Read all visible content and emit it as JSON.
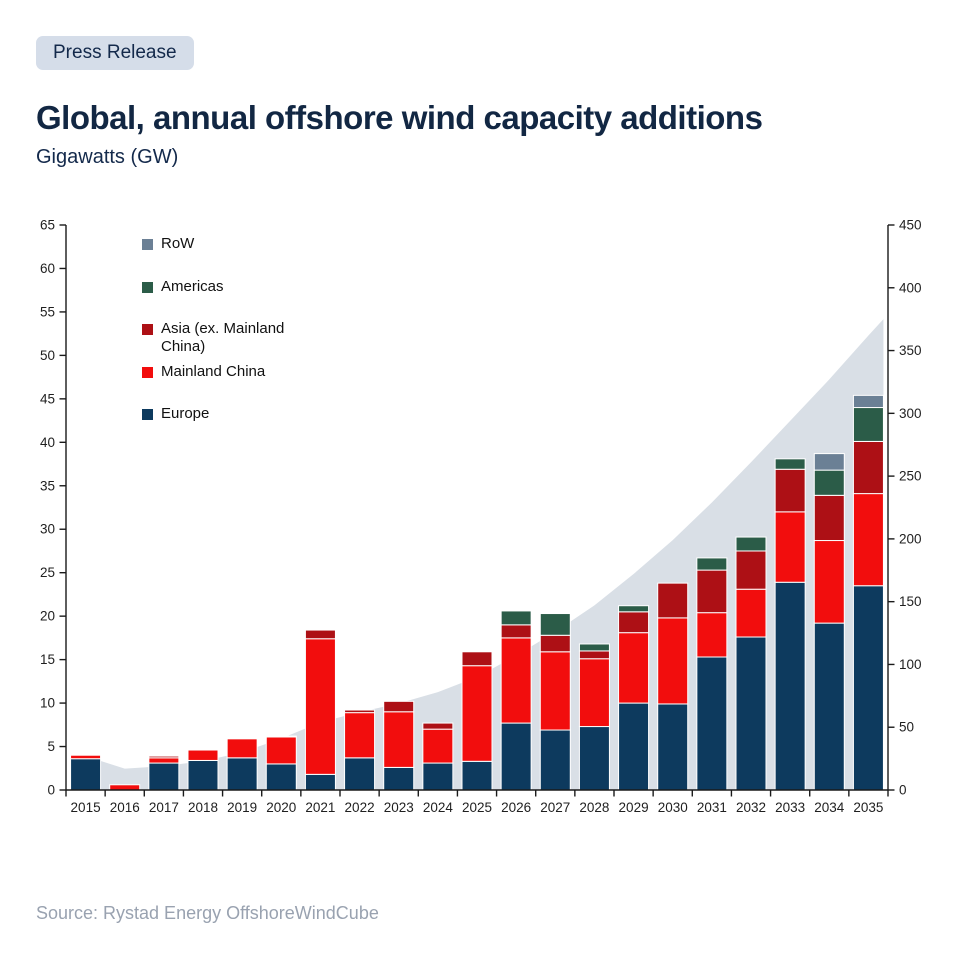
{
  "header": {
    "badge": "Press Release",
    "title": "Global, annual offshore wind capacity additions",
    "subtitle": "Gigawatts (GW)"
  },
  "footer": {
    "source": "Source: Rystad Energy OffshoreWindCube"
  },
  "colors": {
    "background": "#ffffff",
    "badge_bg": "#d5dde9",
    "title_text": "#122743",
    "axis_line": "#1a1a1a",
    "tick_text": "#1f1f1f",
    "segment_seam": "#ffffff",
    "source_text": "#99a2b0"
  },
  "chart_data": {
    "type": "bar",
    "stacked": true,
    "title": "Global, annual offshore wind capacity additions",
    "units": "Gigawatts (GW)",
    "grid": false,
    "legend_position": "top-left-inside",
    "categories": [
      2015,
      2016,
      2017,
      2018,
      2019,
      2020,
      2021,
      2022,
      2023,
      2024,
      2025,
      2026,
      2027,
      2028,
      2029,
      2030,
      2031,
      2032,
      2033,
      2034,
      2035
    ],
    "series": [
      {
        "name": "Europe",
        "color": "#0d3a5e",
        "values": [
          3.6,
          0,
          3.1,
          3.4,
          3.7,
          3.0,
          1.8,
          3.7,
          2.6,
          3.1,
          3.3,
          7.7,
          6.9,
          7.3,
          10.0,
          9.9,
          15.3,
          17.6,
          23.9,
          19.2,
          23.5
        ]
      },
      {
        "name": "Mainland China",
        "color": "#f20d0d",
        "values": [
          0.4,
          0.6,
          0.6,
          1.2,
          2.2,
          3.1,
          15.6,
          5.2,
          6.4,
          3.9,
          11.0,
          9.8,
          9.0,
          7.8,
          8.1,
          9.9,
          5.1,
          5.5,
          8.1,
          9.5,
          10.6
        ]
      },
      {
        "name": "Asia (ex. Mainland China)",
        "color": "#ad1015",
        "values": [
          0,
          0,
          0.2,
          0.1,
          0.1,
          0.1,
          1.0,
          0.3,
          1.2,
          0.7,
          1.6,
          1.5,
          1.9,
          0.9,
          2.4,
          4.0,
          4.9,
          4.4,
          4.9,
          5.2,
          6.0
        ]
      },
      {
        "name": "Americas",
        "color": "#2b5c48",
        "values": [
          0,
          0,
          0,
          0,
          0,
          0,
          0,
          0,
          0,
          0,
          0,
          1.6,
          2.5,
          0.8,
          0.7,
          0,
          1.4,
          1.6,
          1.2,
          2.9,
          3.9
        ]
      },
      {
        "name": "RoW",
        "color": "#6b8095",
        "values": [
          0,
          0,
          0,
          0,
          0,
          0,
          0,
          0,
          0,
          0,
          0,
          0,
          0,
          0,
          0,
          0,
          0,
          0,
          0,
          1.9,
          1.4
        ]
      }
    ],
    "background_area": {
      "name": "shaded-background-band",
      "axis": "right",
      "color": "#d9dfe6",
      "values": [
        27,
        17,
        19,
        23,
        30,
        41,
        54,
        62,
        69,
        78,
        90,
        107,
        126,
        147,
        172,
        199,
        229,
        261,
        294,
        327,
        362
      ],
      "end_value": 375
    },
    "axes": {
      "left": {
        "min": 0,
        "max": 65,
        "step": 5,
        "ticks": [
          0,
          5,
          10,
          15,
          20,
          25,
          30,
          35,
          40,
          45,
          50,
          55,
          60,
          65
        ]
      },
      "right": {
        "min": 0,
        "max": 450,
        "step": 50,
        "ticks": [
          0,
          50,
          100,
          150,
          200,
          250,
          300,
          350,
          400,
          450
        ]
      },
      "x_ticks_between_categories": true
    }
  }
}
